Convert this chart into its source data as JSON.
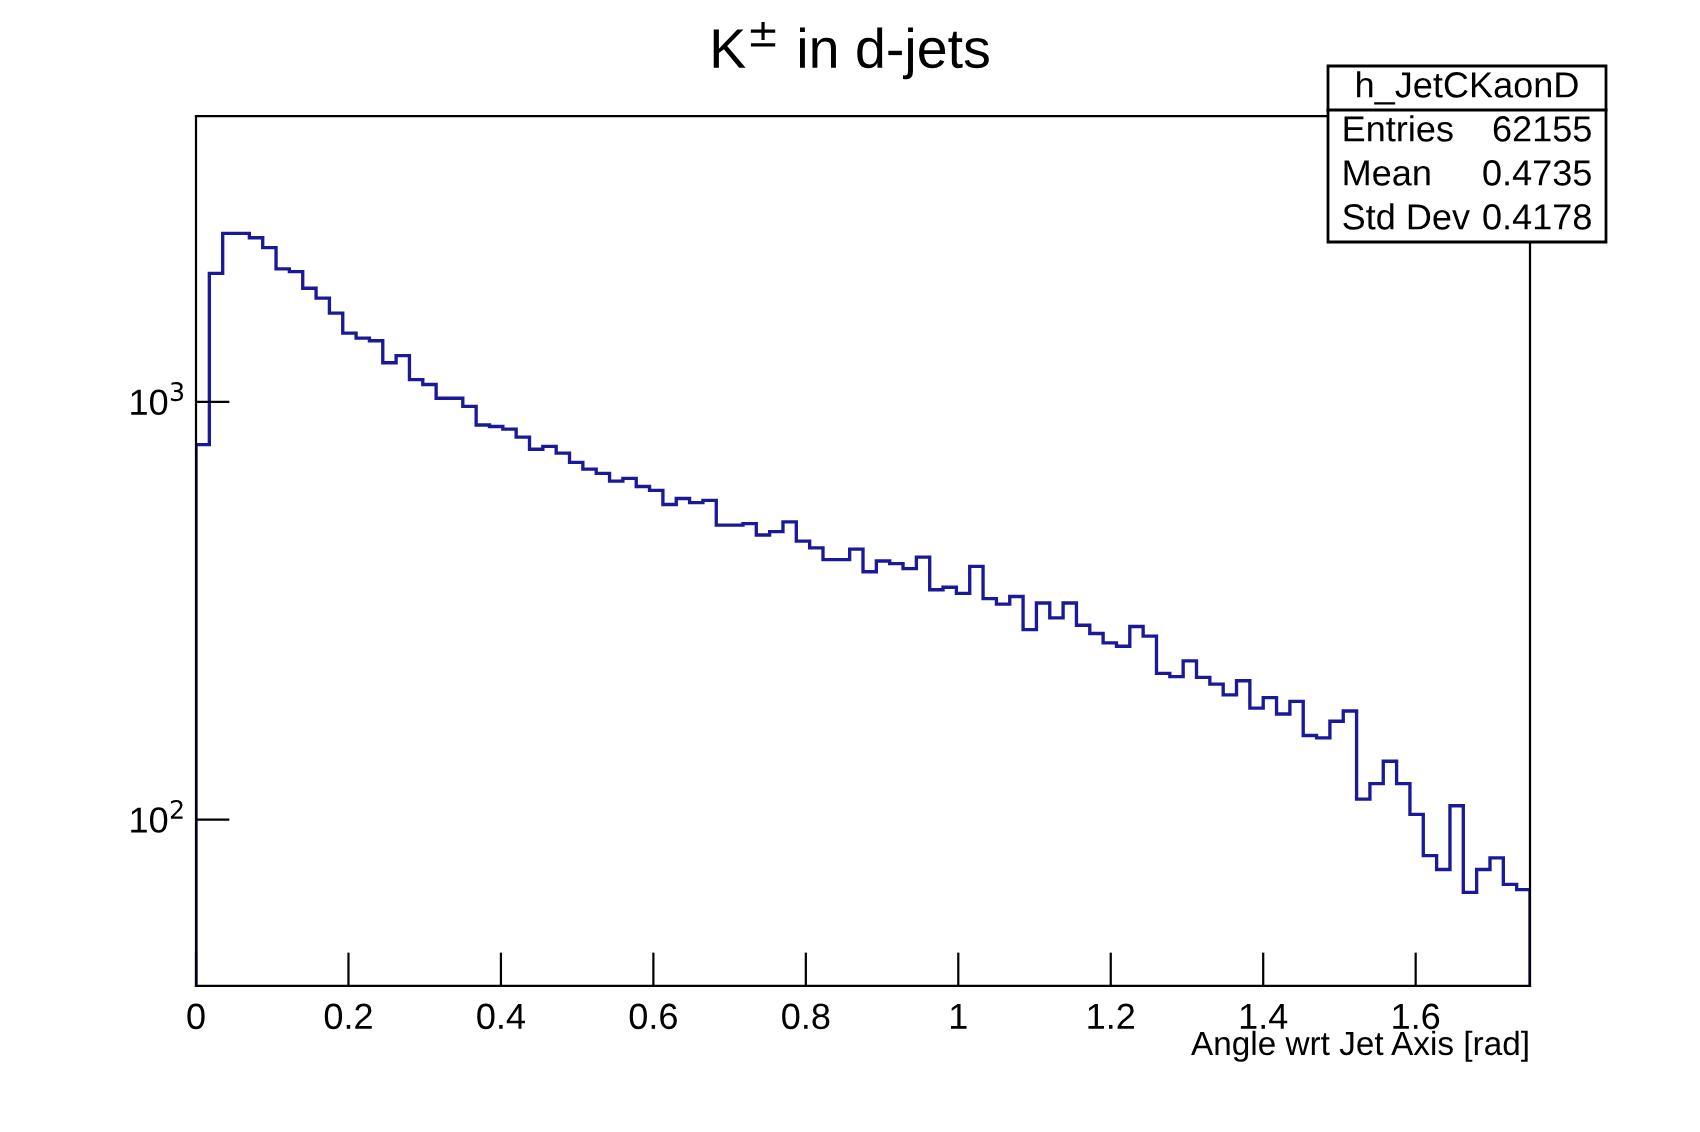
{
  "chart_data": {
    "type": "histogram",
    "title": "K$^{±}$ in d-jets",
    "xlabel": "Angle wrt Jet Axis [rad]",
    "color": "#1a1a99",
    "bins": [
      0,
      0.0175,
      0.035,
      0.0525,
      0.07,
      0.0875,
      0.105,
      0.1225,
      0.14,
      0.1575,
      0.175,
      0.1925,
      0.21,
      0.2275,
      0.245,
      0.2625,
      0.28,
      0.2975,
      0.315,
      0.3325,
      0.35,
      0.3675,
      0.385,
      0.4025,
      0.42,
      0.4375,
      0.455,
      0.4725,
      0.49,
      0.5075,
      0.525,
      0.5425,
      0.56,
      0.5775,
      0.595,
      0.6125,
      0.63,
      0.6475,
      0.665,
      0.6825,
      0.7,
      0.7175,
      0.735,
      0.7525,
      0.77,
      0.7875,
      0.805,
      0.8225,
      0.84,
      0.8575,
      0.875,
      0.8925,
      0.91,
      0.9275,
      0.945,
      0.9625,
      0.98,
      0.9975,
      1.015,
      1.0325,
      1.05,
      1.0675,
      1.085,
      1.1025,
      1.12,
      1.1375,
      1.155,
      1.1725,
      1.19,
      1.2075,
      1.225,
      1.2425,
      1.26,
      1.2775,
      1.295,
      1.3125,
      1.33,
      1.3475,
      1.365,
      1.3825,
      1.4,
      1.4175,
      1.435,
      1.4525,
      1.47,
      1.4875,
      1.505,
      1.5225,
      1.54,
      1.5575,
      1.575,
      1.5925,
      1.61,
      1.6275,
      1.645,
      1.6625,
      1.68,
      1.6975,
      1.715,
      1.7325,
      1.75
    ],
    "values": [
      790,
      2030,
      2530,
      2530,
      2470,
      2340,
      2080,
      2050,
      1870,
      1770,
      1630,
      1460,
      1420,
      1400,
      1240,
      1290,
      1130,
      1100,
      1020,
      1020,
      975,
      880,
      873,
      860,
      823,
      770,
      782,
      754,
      716,
      690,
      674,
      646,
      656,
      627,
      614,
      568,
      587,
      574,
      581,
      507,
      507,
      511,
      480,
      489,
      516,
      464,
      447,
      419,
      419,
      444,
      392,
      416,
      410,
      399,
      425,
      355,
      360,
      348,
      404,
      338,
      328,
      342,
      285,
      330,
      304,
      330,
      292,
      279,
      265,
      260,
      290,
      275,
      224,
      220,
      240,
      219,
      211,
      199,
      215,
      185,
      196,
      179,
      192,
      159,
      157,
      172,
      182,
      112,
      122,
      138,
      122,
      103,
      82,
      76,
      108,
      67,
      76,
      81,
      70,
      68
    ],
    "log": true,
    "xlim": [
      0,
      1.75
    ],
    "ylim": [
      40,
      4830
    ],
    "xticks": [
      0,
      0.2,
      0.4,
      0.6,
      0.8,
      1,
      1.2,
      1.4,
      1.6
    ],
    "yticks": [
      {
        "value": 100,
        "label": "10$^{2}$"
      },
      {
        "value": 1000,
        "label": "10$^{3}$"
      }
    ],
    "grid": false,
    "annotations": [
      "h_JetCKaonD",
      "Entries",
      "62155",
      "Mean",
      "0.4735",
      "Std Dev",
      "0.4178"
    ]
  }
}
